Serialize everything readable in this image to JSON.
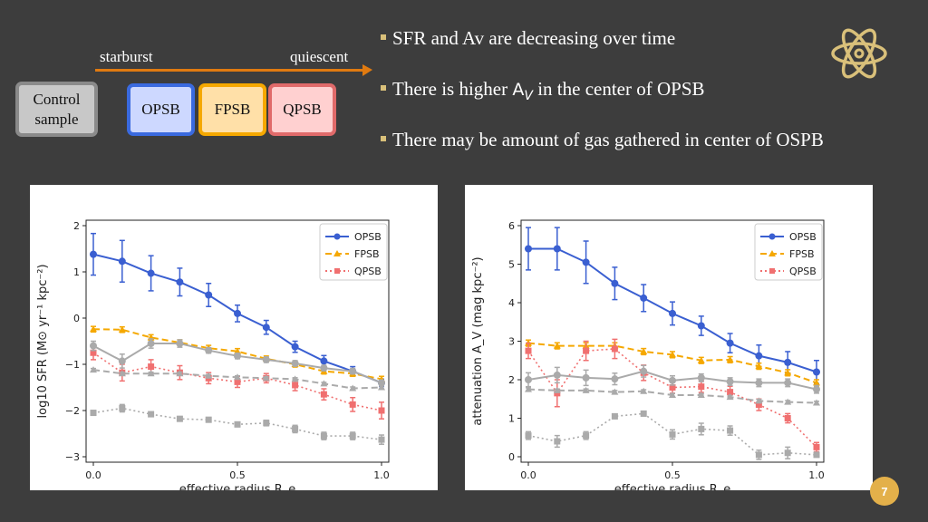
{
  "header": {
    "starburst": "starburst",
    "quiescent": "quiescent",
    "control": "Control\nsample",
    "opsb": "OPSB",
    "fpsb": "FPSB",
    "qpsb": "QPSB"
  },
  "bullets": [
    "SFR and Av are decreasing over time",
    "There is higher",
    "in the center of OPSB",
    "There may be amount of gas gathered in center of OSPB"
  ],
  "av_symbol": "A",
  "av_sub": "V",
  "page_number": "7",
  "colors": {
    "opsb": "#3a5fd1",
    "fpsb": "#f5a800",
    "qpsb": "#f07070",
    "control": "#aaaaaa",
    "accent": "#e07a10",
    "bullet": "#d9c07a",
    "badge": "#e3b04a"
  },
  "chart_data": [
    {
      "type": "line",
      "xlabel": "effective radius R_e",
      "ylabel": "log10 SFR (M⊙ yr⁻¹ kpc⁻²)",
      "xlim": [
        0,
        1.0
      ],
      "ylim": [
        -3,
        2
      ],
      "xticks": [
        "0.0",
        "0.5",
        "1.0"
      ],
      "yticks": [
        "2",
        "1",
        "0",
        "−1",
        "−2",
        "−3"
      ],
      "legend": [
        "OPSB",
        "FPSB",
        "QPSB"
      ],
      "legend_position": "top-right",
      "x": [
        0.0,
        0.1,
        0.2,
        0.3,
        0.4,
        0.5,
        0.6,
        0.7,
        0.8,
        0.9,
        1.0
      ],
      "series": [
        {
          "name": "OPSB",
          "values": [
            1.38,
            1.23,
            0.97,
            0.78,
            0.5,
            0.1,
            -0.2,
            -0.62,
            -0.93,
            -1.15,
            -1.4
          ],
          "err": [
            0.45,
            0.45,
            0.38,
            0.3,
            0.25,
            0.18,
            0.15,
            0.12,
            0.12,
            0.1,
            0.08
          ]
        },
        {
          "name": "FPSB",
          "values": [
            -0.24,
            -0.25,
            -0.42,
            -0.53,
            -0.65,
            -0.72,
            -0.88,
            -1.0,
            -1.15,
            -1.2,
            -1.32
          ],
          "err": [
            0.06,
            0.06,
            0.06,
            0.06,
            0.06,
            0.06,
            0.06,
            0.06,
            0.06,
            0.06,
            0.06
          ]
        },
        {
          "name": "QPSB",
          "values": [
            -0.75,
            -1.18,
            -1.05,
            -1.18,
            -1.3,
            -1.38,
            -1.3,
            -1.45,
            -1.65,
            -1.87,
            -2.0
          ],
          "err": [
            0.15,
            0.18,
            0.15,
            0.15,
            0.12,
            0.12,
            0.1,
            0.12,
            0.12,
            0.15,
            0.18
          ]
        },
        {
          "name": "",
          "values": [
            -0.6,
            -0.93,
            -0.55,
            -0.55,
            -0.7,
            -0.82,
            -0.9,
            -0.98,
            -1.08,
            -1.15,
            -1.4
          ],
          "err": [
            0.1,
            0.15,
            0.1,
            0.08,
            0.06,
            0.06,
            0.06,
            0.06,
            0.06,
            0.06,
            0.06
          ]
        },
        {
          "name": "",
          "values": [
            -1.12,
            -1.2,
            -1.2,
            -1.2,
            -1.25,
            -1.28,
            -1.3,
            -1.32,
            -1.42,
            -1.52,
            -1.5
          ],
          "err": [
            0.03,
            0.03,
            0.03,
            0.03,
            0.03,
            0.03,
            0.03,
            0.03,
            0.03,
            0.03,
            0.03
          ]
        },
        {
          "name": "",
          "values": [
            -2.05,
            -1.95,
            -2.08,
            -2.18,
            -2.2,
            -2.3,
            -2.27,
            -2.4,
            -2.55,
            -2.55,
            -2.63
          ],
          "err": [
            0.05,
            0.08,
            0.05,
            0.05,
            0.05,
            0.05,
            0.06,
            0.08,
            0.08,
            0.08,
            0.1
          ]
        }
      ]
    },
    {
      "type": "line",
      "xlabel": "effective radius R_e",
      "ylabel": "attenuation A_V (mag kpc⁻²)",
      "xlim": [
        0,
        1.0
      ],
      "ylim": [
        0,
        6
      ],
      "xticks": [
        "0.0",
        "0.5",
        "1.0"
      ],
      "yticks": [
        "6",
        "5",
        "4",
        "3",
        "2",
        "1",
        "0"
      ],
      "legend": [
        "OPSB",
        "FPSB",
        "QPSB"
      ],
      "legend_position": "top-right",
      "x": [
        0.0,
        0.1,
        0.2,
        0.3,
        0.4,
        0.5,
        0.6,
        0.7,
        0.8,
        0.9,
        1.0
      ],
      "series": [
        {
          "name": "OPSB",
          "values": [
            5.4,
            5.4,
            5.05,
            4.5,
            4.12,
            3.72,
            3.4,
            2.95,
            2.62,
            2.45,
            2.2
          ],
          "err": [
            0.55,
            0.55,
            0.55,
            0.42,
            0.35,
            0.3,
            0.25,
            0.25,
            0.28,
            0.28,
            0.3
          ]
        },
        {
          "name": "FPSB",
          "values": [
            2.95,
            2.88,
            2.88,
            2.88,
            2.73,
            2.65,
            2.5,
            2.52,
            2.35,
            2.18,
            1.92
          ],
          "err": [
            0.08,
            0.08,
            0.08,
            0.08,
            0.08,
            0.08,
            0.08,
            0.08,
            0.08,
            0.08,
            0.08
          ]
        },
        {
          "name": "QPSB",
          "values": [
            2.75,
            1.65,
            2.75,
            2.8,
            2.18,
            1.8,
            1.82,
            1.68,
            1.35,
            1.0,
            0.25
          ],
          "err": [
            0.2,
            0.35,
            0.25,
            0.25,
            0.2,
            0.15,
            0.15,
            0.15,
            0.15,
            0.12,
            0.12
          ]
        },
        {
          "name": "",
          "values": [
            2.0,
            2.12,
            2.05,
            2.02,
            2.22,
            1.98,
            2.05,
            1.95,
            1.92,
            1.92,
            1.75
          ],
          "err": [
            0.18,
            0.2,
            0.2,
            0.15,
            0.15,
            0.12,
            0.1,
            0.1,
            0.1,
            0.1,
            0.1
          ]
        },
        {
          "name": "",
          "values": [
            1.75,
            1.72,
            1.72,
            1.68,
            1.7,
            1.6,
            1.6,
            1.55,
            1.45,
            1.42,
            1.4
          ],
          "err": [
            0.04,
            0.04,
            0.04,
            0.04,
            0.04,
            0.04,
            0.04,
            0.04,
            0.04,
            0.04,
            0.04
          ]
        },
        {
          "name": "",
          "values": [
            0.55,
            0.4,
            0.55,
            1.05,
            1.12,
            0.58,
            0.72,
            0.68,
            0.05,
            0.1,
            0.05
          ],
          "err": [
            0.1,
            0.15,
            0.1,
            0.06,
            0.06,
            0.12,
            0.15,
            0.12,
            0.12,
            0.15,
            0.05
          ]
        }
      ]
    }
  ]
}
